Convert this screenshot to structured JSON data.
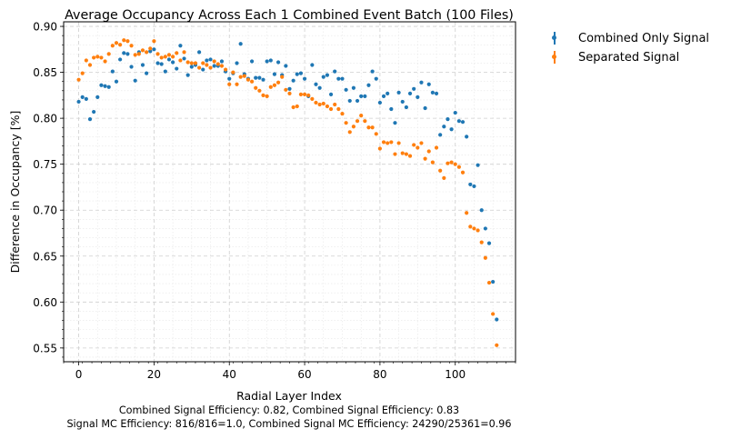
{
  "chart_data": {
    "type": "scatter",
    "title": "Average Occupancy Across Each 1 Combined Event Batch (100 Files)",
    "xlabel": "Radial Layer Index",
    "ylabel": "Difference in Occupancy [%]",
    "xlim": [
      -4,
      116
    ],
    "ylim": [
      0.535,
      0.905
    ],
    "xticks": [
      "0",
      "20",
      "40",
      "60",
      "80",
      "100"
    ],
    "yticks": [
      "0.55",
      "0.60",
      "0.65",
      "0.70",
      "0.75",
      "0.80",
      "0.85",
      "0.90"
    ],
    "grid": true,
    "legend_position": "outside-top-right",
    "colors": {
      "combined": "#1f77b4",
      "separated": "#ff7f0e"
    },
    "series": [
      {
        "name": "Combined Only Signal",
        "color": "#1f77b4",
        "values": [
          0.818,
          0.823,
          0.821,
          0.799,
          0.807,
          0.823,
          0.836,
          0.835,
          0.834,
          0.851,
          0.84,
          0.864,
          0.871,
          0.87,
          0.856,
          0.841,
          0.872,
          0.858,
          0.849,
          0.873,
          0.875,
          0.86,
          0.859,
          0.851,
          0.864,
          0.861,
          0.854,
          0.879,
          0.865,
          0.847,
          0.856,
          0.858,
          0.872,
          0.853,
          0.863,
          0.864,
          0.857,
          0.857,
          0.862,
          0.851,
          0.843,
          0.849,
          0.86,
          0.881,
          0.848,
          0.843,
          0.862,
          0.844,
          0.844,
          0.842,
          0.862,
          0.863,
          0.848,
          0.861,
          0.847,
          0.857,
          0.832,
          0.841,
          0.848,
          0.849,
          0.843,
          0.824,
          0.858,
          0.837,
          0.833,
          0.845,
          0.847,
          0.826,
          0.851,
          0.843,
          0.843,
          0.831,
          0.819,
          0.833,
          0.819,
          0.824,
          0.824,
          0.836,
          0.851,
          0.843,
          0.817,
          0.824,
          0.827,
          0.81,
          0.795,
          0.828,
          0.818,
          0.812,
          0.827,
          0.832,
          0.823,
          0.839,
          0.811,
          0.837,
          0.828,
          0.827,
          0.782,
          0.791,
          0.799,
          0.788,
          0.806,
          0.797,
          0.796,
          0.78,
          0.728,
          0.726,
          0.749,
          0.7,
          0.68,
          0.664,
          0.622,
          0.581
        ]
      },
      {
        "name": "Separated Signal",
        "color": "#ff7f0e",
        "values": [
          0.842,
          0.849,
          0.863,
          0.858,
          0.866,
          0.867,
          0.866,
          0.862,
          0.87,
          0.879,
          0.882,
          0.88,
          0.885,
          0.884,
          0.879,
          0.869,
          0.87,
          0.874,
          0.872,
          0.876,
          0.884,
          0.87,
          0.866,
          0.867,
          0.869,
          0.867,
          0.871,
          0.863,
          0.872,
          0.861,
          0.86,
          0.86,
          0.855,
          0.86,
          0.858,
          0.855,
          0.862,
          0.859,
          0.857,
          0.853,
          0.837,
          0.85,
          0.837,
          0.845,
          0.846,
          0.842,
          0.84,
          0.833,
          0.83,
          0.825,
          0.824,
          0.834,
          0.836,
          0.839,
          0.845,
          0.831,
          0.827,
          0.812,
          0.813,
          0.826,
          0.826,
          0.825,
          0.821,
          0.817,
          0.815,
          0.816,
          0.813,
          0.81,
          0.815,
          0.81,
          0.805,
          0.795,
          0.785,
          0.791,
          0.797,
          0.803,
          0.797,
          0.79,
          0.79,
          0.783,
          0.767,
          0.774,
          0.773,
          0.774,
          0.761,
          0.773,
          0.762,
          0.761,
          0.759,
          0.771,
          0.768,
          0.773,
          0.756,
          0.764,
          0.752,
          0.768,
          0.743,
          0.735,
          0.751,
          0.752,
          0.75,
          0.747,
          0.741,
          0.697,
          0.682,
          0.68,
          0.678,
          0.665,
          0.648,
          0.621,
          0.587,
          0.553
        ]
      }
    ],
    "footer": [
      "Combined Signal Efficiency: 0.82, Combined Signal Efficiency: 0.83",
      "Signal MC Efficiency: 816/816=1.0, Combined Signal MC Efficiency: 24290/25361=0.96"
    ]
  }
}
